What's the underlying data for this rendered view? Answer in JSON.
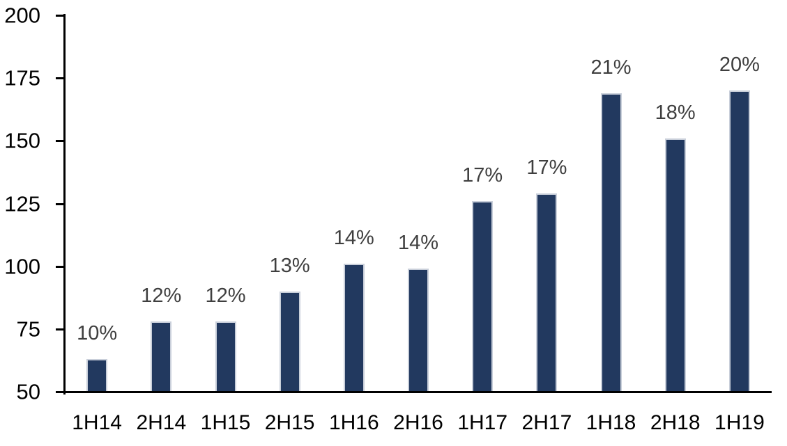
{
  "chart_data": {
    "type": "bar",
    "title": "",
    "xlabel": "",
    "ylabel": "",
    "categories": [
      "1H14",
      "2H14",
      "1H15",
      "2H15",
      "1H16",
      "2H16",
      "1H17",
      "2H17",
      "1H18",
      "2H18",
      "1H19"
    ],
    "values": [
      63,
      78,
      78,
      90,
      101,
      99,
      126,
      129,
      169,
      151,
      170
    ],
    "bar_labels": [
      "10%",
      "12%",
      "12%",
      "13%",
      "14%",
      "14%",
      "17%",
      "17%",
      "21%",
      "18%",
      "20%"
    ],
    "ylim": [
      50,
      200
    ],
    "yticks": [
      50,
      75,
      100,
      125,
      150,
      175,
      200
    ],
    "grid": false,
    "legend": false,
    "colors": {
      "bar_fill": "#22395F",
      "bar_border": "#C9CFDA",
      "bar_label_text": "#3F3F3F",
      "axis": "#000000",
      "tick_text": "#000000",
      "background": "#FFFFFF"
    }
  }
}
